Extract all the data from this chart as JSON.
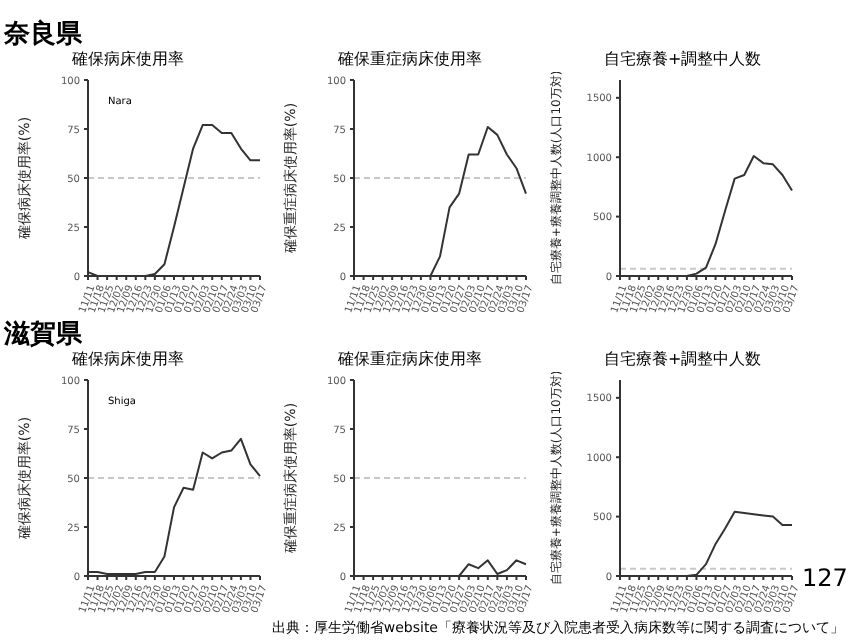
{
  "chart_data": [
    {
      "type": "line",
      "title": "確保病床使用率",
      "ylabel": "確保病床使用率(%)",
      "annotations": [
        "奈良県",
        "Nara"
      ],
      "categories": [
        "11/11",
        "11/18",
        "11/25",
        "12/02",
        "12/09",
        "12/16",
        "12/23",
        "12/30",
        "01/06",
        "01/13",
        "01/20",
        "01/27",
        "02/03",
        "02/10",
        "02/17",
        "02/24",
        "03/03",
        "03/10",
        "03/17"
      ],
      "series": [
        {
          "color": "#333333",
          "values": [
            2,
            0,
            0,
            0,
            0,
            0,
            0,
            1,
            6,
            25,
            45,
            65,
            77,
            77,
            73,
            73,
            65,
            59,
            59
          ]
        }
      ],
      "ylim": [
        0,
        100
      ],
      "yticks": [
        0,
        25,
        50,
        75,
        100
      ],
      "ref_lines": [
        {
          "axis": "y",
          "value": 50,
          "color": "#c8c8c8",
          "line_style": "dashed"
        }
      ],
      "marker": "none"
    },
    {
      "type": "line",
      "title": "確保重症病床使用率",
      "ylabel": "確保重症病床使用率(%)",
      "categories": [
        "11/11",
        "11/18",
        "11/25",
        "12/02",
        "12/09",
        "12/16",
        "12/23",
        "12/30",
        "01/06",
        "01/13",
        "01/20",
        "01/27",
        "02/03",
        "02/10",
        "02/17",
        "02/24",
        "03/03",
        "03/10",
        "03/17"
      ],
      "series": [
        {
          "color": "#333333",
          "values": [
            0,
            0,
            0,
            0,
            0,
            0,
            0,
            0,
            0,
            10,
            35,
            42,
            62,
            62,
            76,
            72,
            62,
            55,
            42
          ]
        }
      ],
      "ylim": [
        0,
        100
      ],
      "yticks": [
        0,
        25,
        50,
        75,
        100
      ],
      "ref_lines": [
        {
          "axis": "y",
          "value": 50,
          "color": "#c8c8c8",
          "line_style": "dashed"
        }
      ],
      "marker": "none"
    },
    {
      "type": "line",
      "title": "自宅療養+調整中人数",
      "ylabel": "自宅療養+療養調整中人数(人口10万対)",
      "categories": [
        "11/11",
        "11/18",
        "11/25",
        "12/02",
        "12/09",
        "12/16",
        "12/23",
        "12/30",
        "01/06",
        "01/13",
        "01/20",
        "01/27",
        "02/03",
        "02/10",
        "02/17",
        "02/24",
        "03/03",
        "03/10",
        "03/17"
      ],
      "series": [
        {
          "color": "#333333",
          "values": [
            0,
            0,
            0,
            0,
            0,
            0,
            0,
            0,
            20,
            70,
            270,
            550,
            820,
            850,
            1010,
            950,
            940,
            850,
            720
          ]
        }
      ],
      "ylim": [
        0,
        1650
      ],
      "yticks": [
        0,
        500,
        1000,
        1500
      ],
      "ref_lines": [
        {
          "axis": "y",
          "value": 60,
          "color": "#c8c8c8",
          "line_style": "dashed"
        }
      ],
      "marker": "none"
    },
    {
      "type": "line",
      "title": "確保病床使用率",
      "ylabel": "確保病床使用率(%)",
      "annotations": [
        "滋賀県",
        "Shiga"
      ],
      "categories": [
        "11/11",
        "11/18",
        "11/25",
        "12/02",
        "12/09",
        "12/16",
        "12/23",
        "12/30",
        "01/06",
        "01/13",
        "01/20",
        "01/27",
        "02/03",
        "02/10",
        "02/17",
        "02/24",
        "03/03",
        "03/10",
        "03/17"
      ],
      "series": [
        {
          "color": "#333333",
          "values": [
            2,
            2,
            1,
            1,
            1,
            1,
            2,
            2,
            10,
            35,
            45,
            44,
            63,
            60,
            63,
            64,
            70,
            57,
            51
          ]
        }
      ],
      "ylim": [
        0,
        100
      ],
      "yticks": [
        0,
        25,
        50,
        75,
        100
      ],
      "ref_lines": [
        {
          "axis": "y",
          "value": 50,
          "color": "#c8c8c8",
          "line_style": "dashed"
        }
      ],
      "marker": "none"
    },
    {
      "type": "line",
      "title": "確保重症病床使用率",
      "ylabel": "確保重症病床使用率(%)",
      "categories": [
        "11/11",
        "11/18",
        "11/25",
        "12/02",
        "12/09",
        "12/16",
        "12/23",
        "12/30",
        "01/06",
        "01/13",
        "01/20",
        "01/27",
        "02/03",
        "02/10",
        "02/17",
        "02/24",
        "03/03",
        "03/10",
        "03/17"
      ],
      "series": [
        {
          "color": "#333333",
          "values": [
            0,
            0,
            0,
            0,
            0,
            0,
            0,
            0,
            0,
            0,
            0,
            0,
            6,
            4,
            8,
            1,
            3,
            8,
            6
          ]
        }
      ],
      "ylim": [
        0,
        100
      ],
      "yticks": [
        0,
        25,
        50,
        75,
        100
      ],
      "ref_lines": [
        {
          "axis": "y",
          "value": 50,
          "color": "#c8c8c8",
          "line_style": "dashed"
        }
      ],
      "marker": "none"
    },
    {
      "type": "line",
      "title": "自宅療養+調整中人数",
      "ylabel": "自宅療養+療養調整中人数(人口10万対)",
      "annotations": [
        "127",
        "出典：厚生労働省website「療養状況等及び入院患者受入病床数等に関する調査について」"
      ],
      "categories": [
        "11/11",
        "11/18",
        "11/25",
        "12/02",
        "12/09",
        "12/16",
        "12/23",
        "12/30",
        "01/06",
        "01/13",
        "01/20",
        "01/27",
        "02/03",
        "02/10",
        "02/17",
        "02/24",
        "03/03",
        "03/10",
        "03/17"
      ],
      "series": [
        {
          "color": "#333333",
          "values": [
            0,
            0,
            0,
            0,
            0,
            0,
            0,
            0,
            10,
            100,
            270,
            400,
            540,
            530,
            520,
            510,
            500,
            430,
            430
          ]
        }
      ],
      "ylim": [
        0,
        1650
      ],
      "yticks": [
        0,
        500,
        1000,
        1500
      ],
      "ref_lines": [
        {
          "axis": "y",
          "value": 60,
          "color": "#c8c8c8",
          "line_style": "dashed"
        }
      ],
      "marker": "none"
    }
  ]
}
